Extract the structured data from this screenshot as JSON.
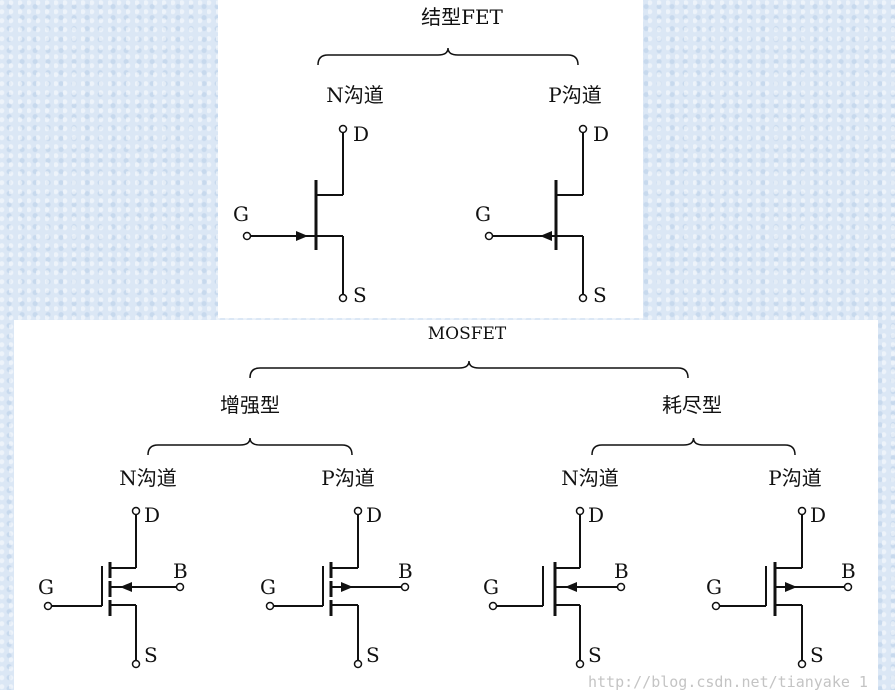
{
  "jfet": {
    "title": "结型FET",
    "n_channel": "N沟道",
    "p_channel": "P沟道",
    "terminals": {
      "gate": "G",
      "drain": "D",
      "source": "S"
    }
  },
  "mosfet": {
    "title": "MOSFET",
    "enhancement": {
      "title": "增强型",
      "n_channel": "N沟道",
      "p_channel": "P沟道"
    },
    "depletion": {
      "title": "耗尽型",
      "n_channel": "N沟道",
      "p_channel": "P沟道"
    },
    "terminals": {
      "gate": "G",
      "drain": "D",
      "source": "S",
      "body": "B"
    }
  },
  "watermark": "http://blog.csdn.net/tianyake_1",
  "colors": {
    "background": "#dbe7f5",
    "panel": "#ffffff",
    "line": "#111111"
  }
}
